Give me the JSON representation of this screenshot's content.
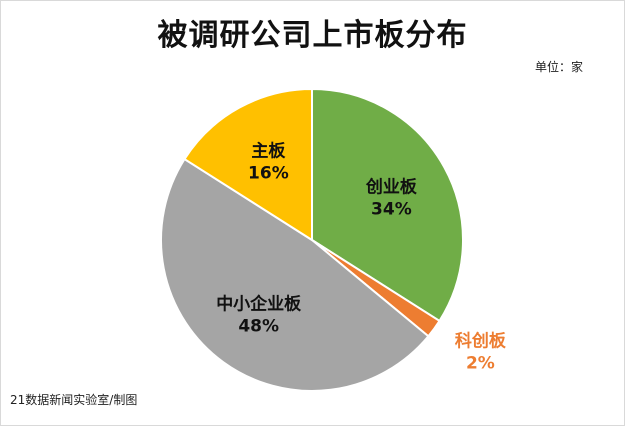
{
  "unit_label": "单位：家",
  "source_note": "21数据新闻实验室/制图",
  "chart_data": {
    "type": "pie",
    "title": "被调研公司上市板分布",
    "unit": "家",
    "categories": [
      "创业板",
      "科创板",
      "中小企业板",
      "主板"
    ],
    "values": [
      34,
      2,
      48,
      16
    ],
    "value_labels": [
      "34%",
      "2%",
      "48%",
      "16%"
    ],
    "colors": [
      "#70ad47",
      "#ed7d31",
      "#a5a5a5",
      "#ffc000"
    ],
    "label_colors": [
      "#111111",
      "#ed7d31",
      "#111111",
      "#111111"
    ],
    "label_placement": [
      "inside",
      "outside",
      "inside",
      "inside"
    ],
    "start_angle": "12 o'clock",
    "direction": "clockwise"
  }
}
